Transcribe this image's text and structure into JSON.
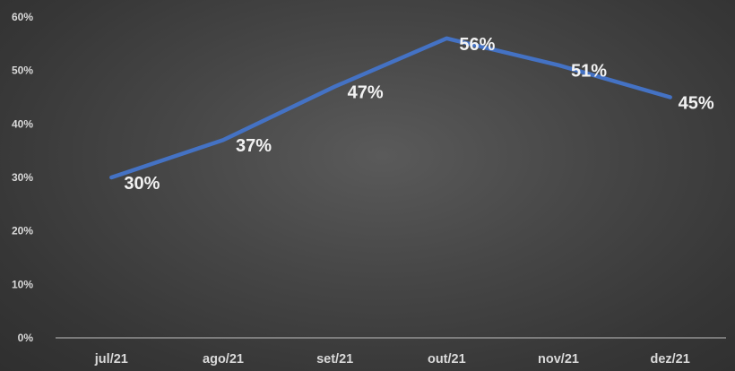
{
  "chart_data": {
    "type": "line",
    "title": "",
    "xlabel": "",
    "ylabel": "",
    "categories": [
      "jul/21",
      "ago/21",
      "set/21",
      "out/21",
      "nov/21",
      "dez/21"
    ],
    "series": [
      {
        "values": [
          30,
          37,
          47,
          56,
          51,
          45
        ],
        "data_labels": [
          "30%",
          "37%",
          "47%",
          "56%",
          "51%",
          "45%"
        ],
        "color": "#4472c4"
      }
    ],
    "ylim": [
      0,
      60
    ],
    "yticks": [
      0,
      10,
      20,
      30,
      40,
      50,
      60
    ],
    "ytick_labels": [
      "0%",
      "10%",
      "20%",
      "30%",
      "40%",
      "50%",
      "60%"
    ],
    "grid": false,
    "legend": "none",
    "colors": {
      "line": "#4472c4",
      "axis": "#bfbfbf",
      "tick_text": "#d9d9d9",
      "label_text": "#f2f2f2"
    }
  }
}
